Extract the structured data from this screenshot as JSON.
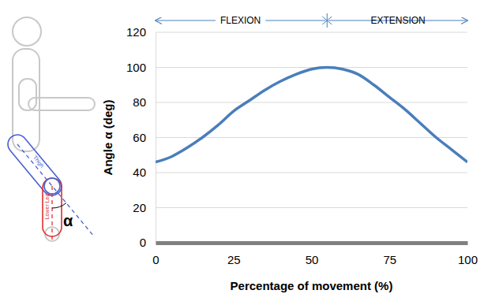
{
  "chart_data": {
    "type": "line",
    "x_label": "Percentage of movement (%)",
    "y_label": "Angle α (deg)",
    "annotations": [
      "FLEXION",
      "EXTENSION",
      "Thigh",
      "Lower Leg",
      "α"
    ],
    "x": [
      0,
      5,
      10,
      15,
      20,
      25,
      30,
      35,
      40,
      45,
      50,
      55,
      60,
      65,
      70,
      75,
      80,
      85,
      90,
      95,
      100
    ],
    "values": [
      46,
      49,
      54,
      60,
      67,
      75,
      81,
      87,
      92,
      96,
      99,
      100,
      99,
      96,
      90,
      83,
      76,
      68,
      60,
      53,
      46
    ],
    "color": "#4a7ebb",
    "xlim": [
      0,
      100
    ],
    "xticks": [
      0,
      25,
      50,
      75,
      100
    ],
    "ylim": [
      0,
      120
    ],
    "yticks": [
      0,
      20,
      40,
      60,
      80,
      100,
      120
    ],
    "grid": true
  }
}
